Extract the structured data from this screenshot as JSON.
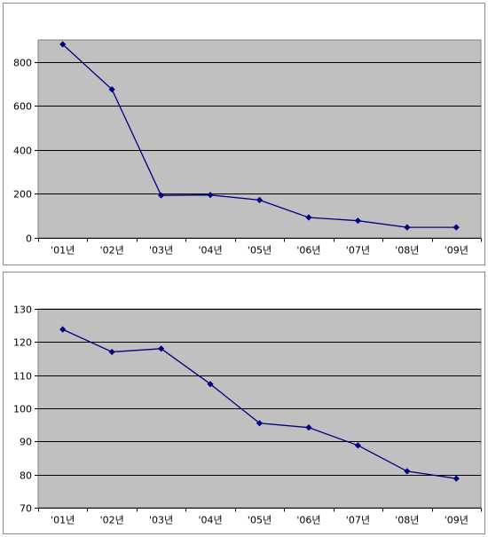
{
  "colors": {
    "plot_bg": "#c0c0c0",
    "line": "#000080",
    "grid": "#000000"
  },
  "chart_data": [
    {
      "type": "line",
      "categories": [
        "'01년",
        "'02년",
        "'03년",
        "'04년",
        "'05년",
        "'06년",
        "'07년",
        "'08년",
        "'09년"
      ],
      "series": [
        {
          "values": [
            880,
            675,
            193,
            195,
            172,
            93,
            78,
            48,
            48
          ]
        }
      ],
      "ylim": [
        0,
        900
      ],
      "yticks": [
        0,
        200,
        400,
        600,
        800
      ],
      "grid": true,
      "legend": "none"
    },
    {
      "type": "line",
      "categories": [
        "'01년",
        "'02년",
        "'03년",
        "'04년",
        "'05년",
        "'06년",
        "'07년",
        "'08년",
        "'09년"
      ],
      "series": [
        {
          "values": [
            123.8,
            117.0,
            118.0,
            107.3,
            95.5,
            94.2,
            88.8,
            81.0,
            78.8
          ]
        }
      ],
      "ylim": [
        70,
        130
      ],
      "yticks": [
        70,
        80,
        90,
        100,
        110,
        120,
        130
      ],
      "grid": true,
      "legend": "none"
    }
  ]
}
